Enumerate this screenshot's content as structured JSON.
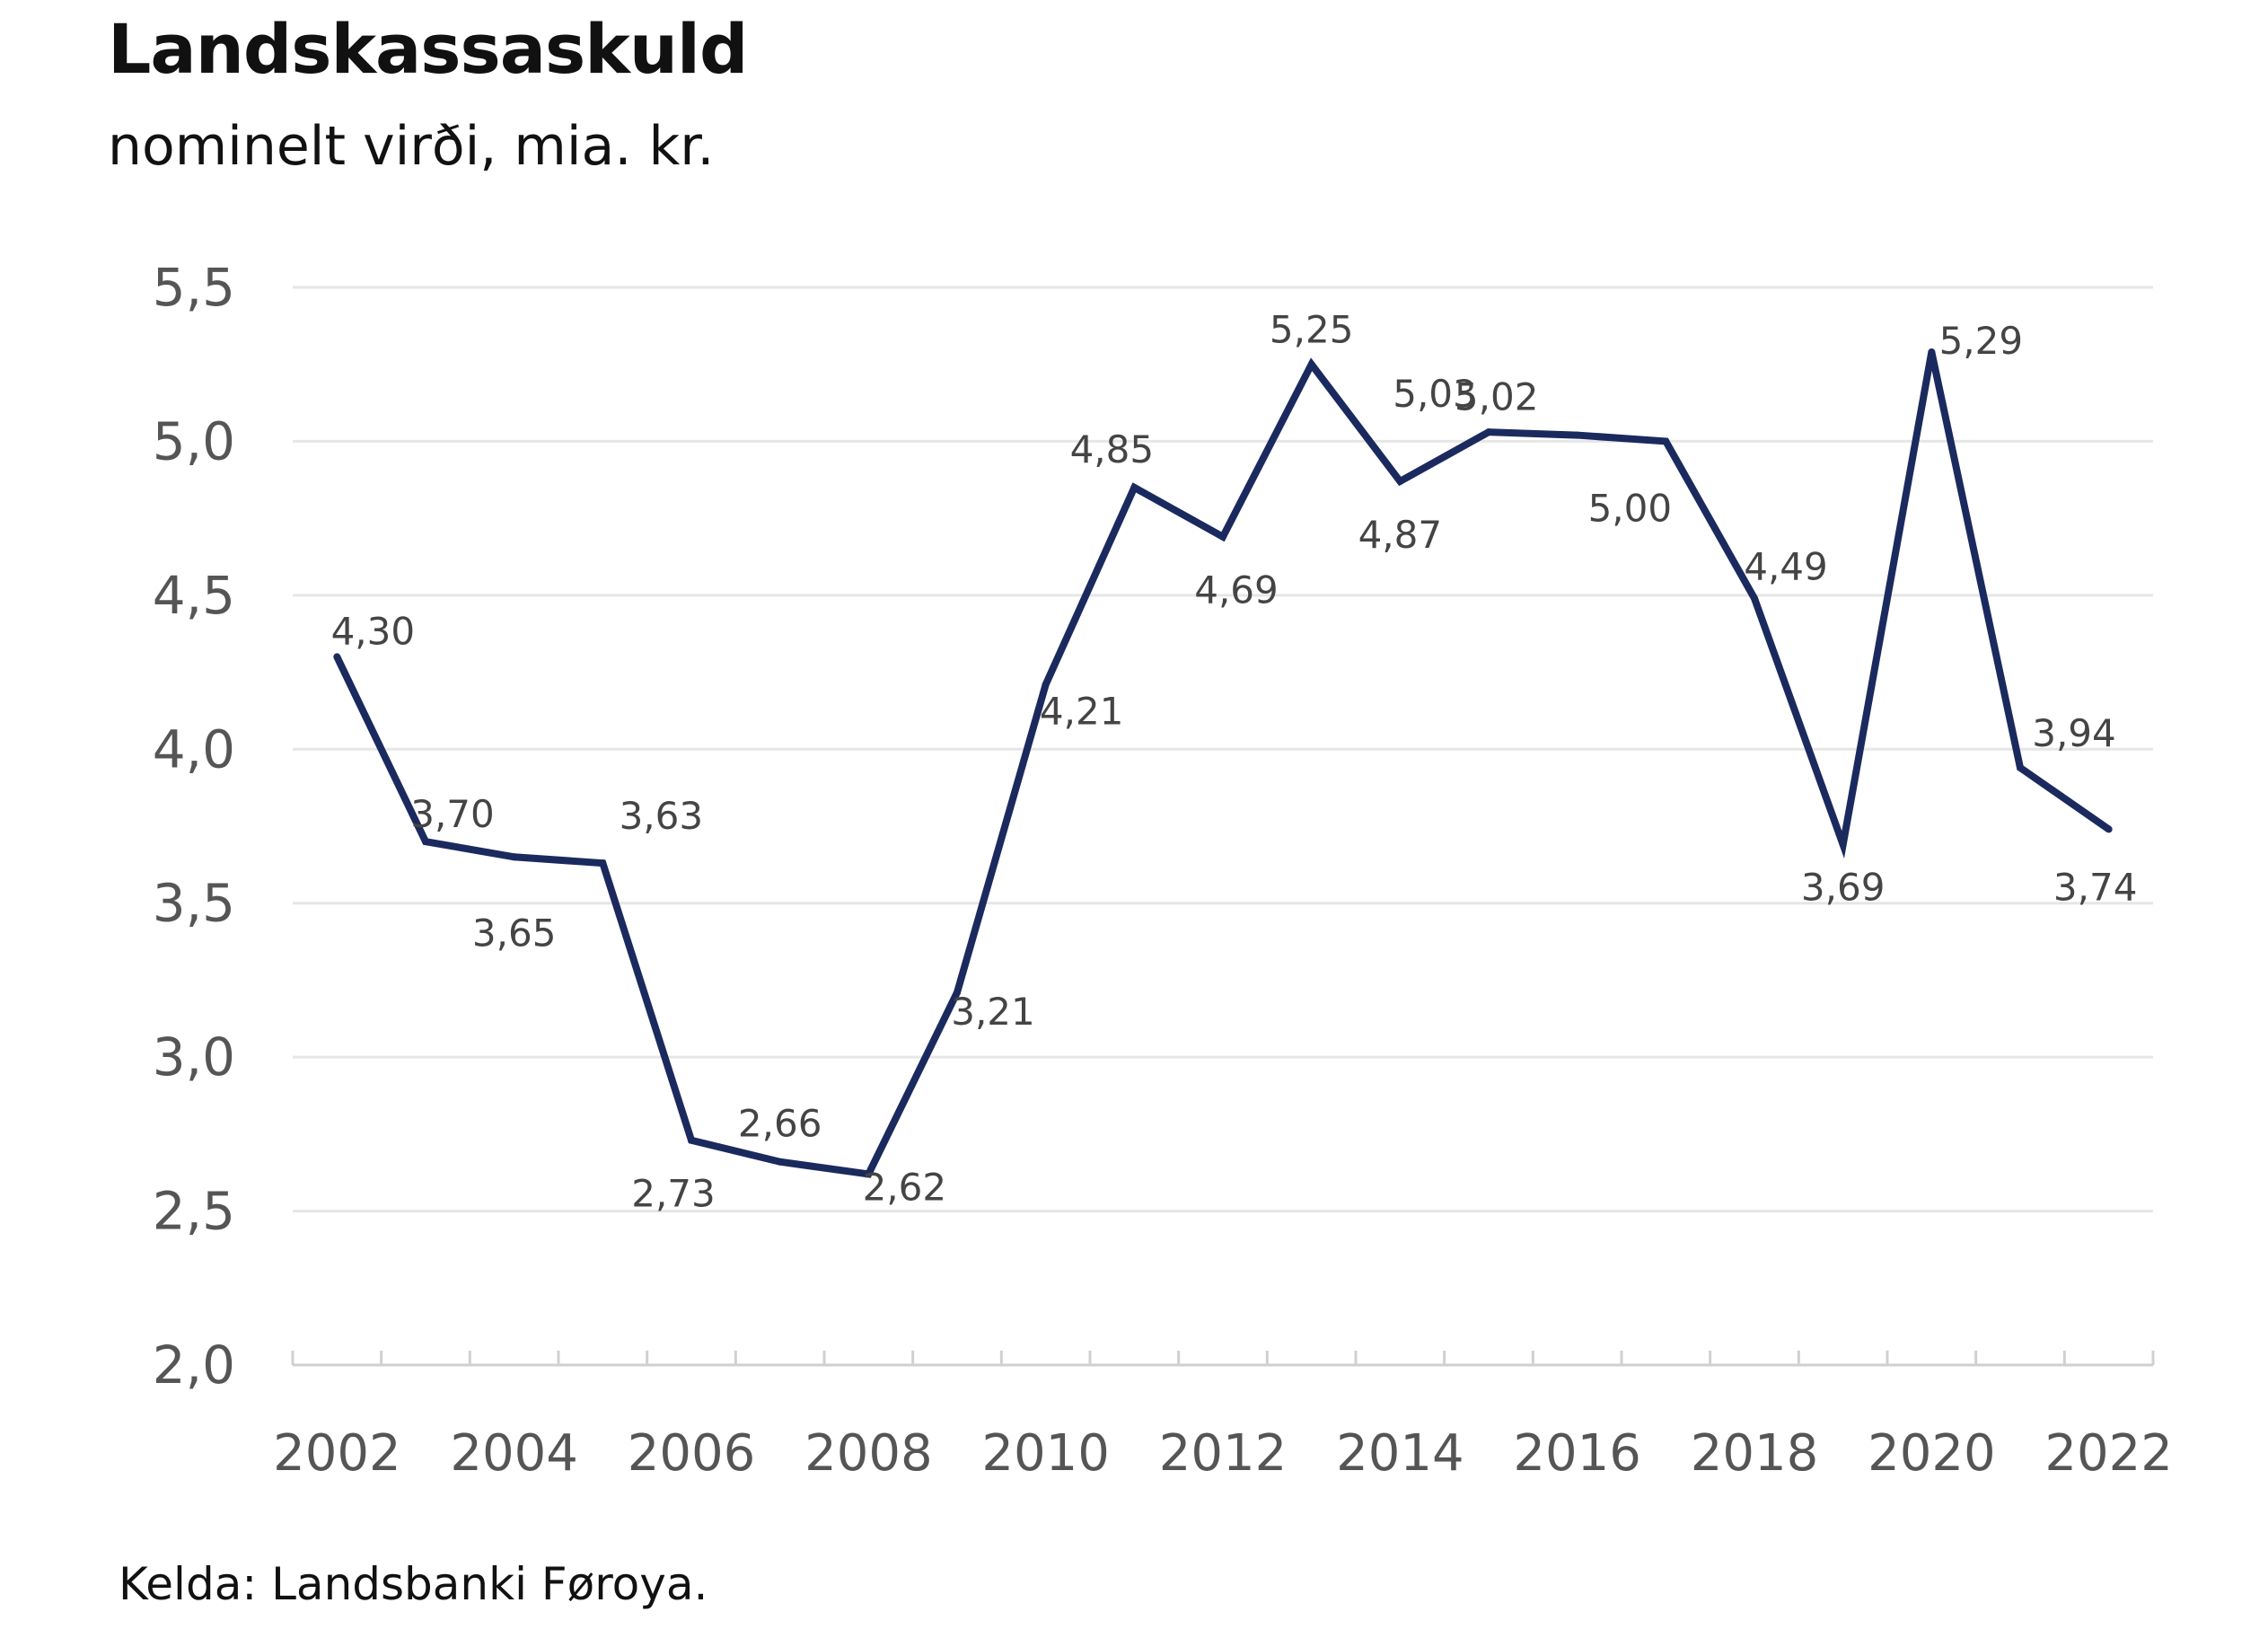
{
  "chart_data": {
    "type": "line",
    "title": "Landskassaskuld",
    "subtitle": "nominelt virði, mia. kr.",
    "source": "Kelda: Landsbanki Føroya.",
    "xlabel": "",
    "ylabel": "",
    "ylim": [
      2.0,
      5.5
    ],
    "yticks": [
      "2,0",
      "2,5",
      "3,0",
      "3,5",
      "4,0",
      "4,5",
      "5,0",
      "5,5"
    ],
    "ytick_values": [
      2.0,
      2.5,
      3.0,
      3.5,
      4.0,
      4.5,
      5.0,
      5.5
    ],
    "xlim": [
      2001.5,
      2022.5
    ],
    "xticks": [
      "2002",
      "2004",
      "2006",
      "2008",
      "2010",
      "2012",
      "2014",
      "2016",
      "2018",
      "2020",
      "2022"
    ],
    "xtick_values": [
      2002,
      2004,
      2006,
      2008,
      2010,
      2012,
      2014,
      2016,
      2018,
      2020,
      2022
    ],
    "grid": true,
    "series": [
      {
        "name": "Landskassaskuld",
        "color": "#1b2a5e",
        "x": [
          2002,
          2003,
          2004,
          2005,
          2006,
          2007,
          2008,
          2009,
          2010,
          2011,
          2012,
          2013,
          2014,
          2015,
          2016,
          2017,
          2018,
          2019,
          2020,
          2021,
          2022
        ],
        "values": [
          4.3,
          3.7,
          3.65,
          3.63,
          2.73,
          2.66,
          2.62,
          3.21,
          4.21,
          4.85,
          4.69,
          5.25,
          4.87,
          5.03,
          5.02,
          5.0,
          4.49,
          3.69,
          5.29,
          3.94,
          3.74
        ],
        "labels": [
          "4,30",
          "3,70",
          "3,65",
          "3,63",
          "2,73",
          "2,66",
          "2,62",
          "3,21",
          "4,21",
          "4,85",
          "4,69",
          "5,25",
          "4,87",
          "5,03",
          "5,02",
          "5,00",
          "4,49",
          "3,69",
          "5,29",
          "3,94",
          "3,74"
        ]
      }
    ]
  },
  "colors": {
    "line": "#1b2a5e",
    "grid": "#e6e6e6",
    "axis": "#d0d0d0"
  }
}
